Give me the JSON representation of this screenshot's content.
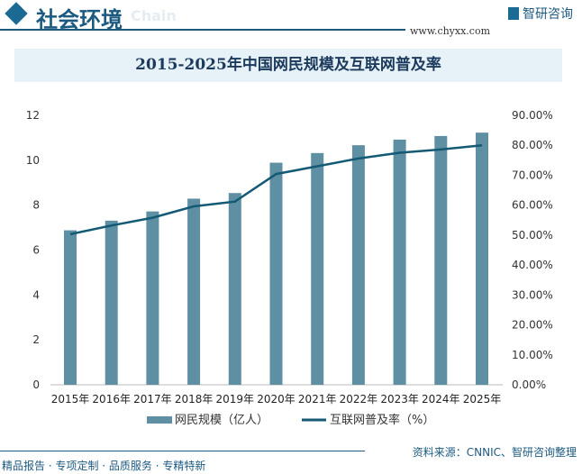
{
  "header": {
    "title": "社会环境",
    "subtitle": "Chain",
    "logo_text": "智研咨询",
    "url": "www.chyxx.com"
  },
  "footer": {
    "source": "资料来源：CNNIC、智研咨询整理",
    "slogan": "精品报告 · 专项定制 · 品质服务 · 专精特新"
  },
  "colors": {
    "bar": "#5e8fa3",
    "line": "#145a74",
    "accent": "#1c5a80"
  },
  "chart_data": {
    "type": "bar+line",
    "title": "2015-2025年中国网民规模及互联网普及率",
    "categories": [
      "2015年",
      "2016年",
      "2017年",
      "2018年",
      "2019年",
      "2020年",
      "2021年",
      "2022年",
      "2023年",
      "2024年",
      "2025年"
    ],
    "series": [
      {
        "name": "网民规模（亿人）",
        "type": "bar",
        "axis": "left",
        "values": [
          6.88,
          7.31,
          7.72,
          8.29,
          8.54,
          9.89,
          10.32,
          10.67,
          10.92,
          11.08,
          11.23
        ]
      },
      {
        "name": "互联网普及率（%）",
        "type": "line",
        "axis": "right",
        "values": [
          50.3,
          53.2,
          55.8,
          59.6,
          61.2,
          70.4,
          73.0,
          75.6,
          77.5,
          78.6,
          80.0
        ]
      }
    ],
    "left_axis": {
      "ylim": [
        0,
        12
      ],
      "ticks": [
        "0",
        "2",
        "4",
        "6",
        "8",
        "10",
        "12"
      ]
    },
    "right_axis": {
      "ylim": [
        0,
        90
      ],
      "ticks": [
        "0.00%",
        "10.00%",
        "20.00%",
        "30.00%",
        "40.00%",
        "50.00%",
        "60.00%",
        "70.00%",
        "80.00%",
        "90.00%"
      ]
    },
    "legend": "bottom",
    "grid": false
  }
}
